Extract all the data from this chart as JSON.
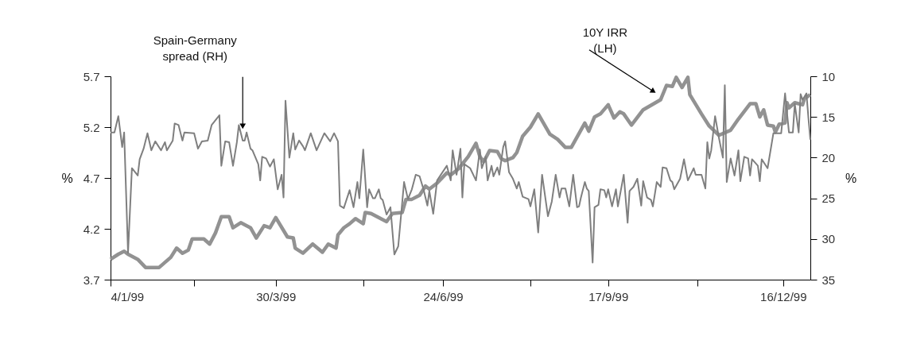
{
  "chart_data": {
    "type": "line",
    "ylabel": "%",
    "y2label": "%",
    "xlim": [
      "1999-01-04",
      "1999-12-30"
    ],
    "xticks": [
      {
        "value": "1999-01-04",
        "label": "4/1/99"
      },
      {
        "value": "1999-02-16",
        "label": null
      },
      {
        "value": "1999-03-30",
        "label": "30/3/99"
      },
      {
        "value": "1999-05-14",
        "label": null
      },
      {
        "value": "1999-06-24",
        "label": "24/6/99"
      },
      {
        "value": "1999-08-08",
        "label": null
      },
      {
        "value": "1999-09-17",
        "label": "17/9/99"
      },
      {
        "value": "1999-11-02",
        "label": null
      },
      {
        "value": "1999-12-16",
        "label": "16/12/99"
      }
    ],
    "ylim": [
      3.7,
      5.7
    ],
    "yticks": [
      3.7,
      4.2,
      4.7,
      5.2,
      5.7
    ],
    "y2lim": [
      35,
      10
    ],
    "y2ticks": [
      35,
      30,
      25,
      20,
      15,
      10
    ],
    "grid": false,
    "marker": "none",
    "line_style": "solid",
    "annotations": [
      {
        "text": "Spain-Germany\nspread (RH)",
        "x": "1999-03-13",
        "y": 5.17
      },
      {
        "text": "10Y IRR\n(LH)",
        "x": "1999-10-12",
        "y": 5.53
      }
    ],
    "series": [
      {
        "color": "#929292",
        "axis": "y",
        "x": [
          "1999-01-04",
          "1999-01-08",
          "1999-01-11",
          "1999-01-13",
          "1999-01-18",
          "1999-01-22",
          "1999-01-29",
          "1999-02-04",
          "1999-02-07",
          "1999-02-10",
          "1999-02-13",
          "1999-02-15",
          "1999-02-21",
          "1999-02-24",
          "1999-02-27",
          "1999-03-02",
          "1999-03-06",
          "1999-03-08",
          "1999-03-12",
          "1999-03-17",
          "1999-03-20",
          "1999-03-24",
          "1999-03-27",
          "1999-03-30",
          "1999-04-05",
          "1999-04-08",
          "1999-04-09",
          "1999-04-13",
          "1999-04-18",
          "1999-04-23",
          "1999-04-26",
          "1999-04-30",
          "1999-05-01",
          "1999-05-04",
          "1999-05-07",
          "1999-05-10",
          "1999-05-14",
          "1999-05-15",
          "1999-05-18",
          "1999-05-26",
          "1999-05-29",
          "1999-06-03",
          "1999-06-05",
          "1999-06-08",
          "1999-06-12",
          "1999-06-15",
          "1999-06-17",
          "1999-06-21",
          "1999-06-26",
          "1999-06-28",
          "1999-07-02",
          "1999-07-07",
          "1999-07-11",
          "1999-07-13",
          "1999-07-15",
          "1999-07-18",
          "1999-07-22",
          "1999-07-24",
          "1999-07-26",
          "1999-07-30",
          "1999-08-01",
          "1999-08-04",
          "1999-08-08",
          "1999-08-12",
          "1999-08-18",
          "1999-08-22",
          "1999-08-26",
          "1999-08-29",
          "1999-09-05",
          "1999-09-07",
          "1999-09-10",
          "1999-09-13",
          "1999-09-17",
          "1999-09-20",
          "1999-09-23",
          "1999-09-25",
          "1999-09-29",
          "1999-10-05",
          "1999-10-14",
          "1999-10-17",
          "1999-10-20",
          "1999-10-22",
          "1999-10-25",
          "1999-10-28",
          "1999-10-29",
          "1999-11-04",
          "1999-11-08",
          "1999-11-13",
          "1999-11-19",
          "1999-11-23",
          "1999-11-29",
          "1999-12-02",
          "1999-12-04",
          "1999-12-06",
          "1999-12-08",
          "1999-12-11",
          "1999-12-12",
          "1999-12-14",
          "1999-12-17",
          "1999-12-18",
          "1999-12-19",
          "1999-12-22",
          "1999-12-26",
          "1999-12-27",
          "1999-12-30"
        ],
        "values": [
          3.9,
          3.95,
          3.98,
          3.95,
          3.9,
          3.82,
          3.82,
          3.92,
          4.01,
          3.96,
          3.99,
          4.1,
          4.1,
          4.05,
          4.16,
          4.32,
          4.32,
          4.21,
          4.26,
          4.21,
          4.11,
          4.23,
          4.21,
          4.31,
          4.12,
          4.11,
          4.01,
          3.96,
          4.05,
          3.97,
          4.05,
          4.01,
          4.14,
          4.21,
          4.25,
          4.3,
          4.25,
          4.36,
          4.35,
          4.27,
          4.35,
          4.36,
          4.49,
          4.49,
          4.53,
          4.62,
          4.59,
          4.65,
          4.75,
          4.73,
          4.79,
          4.91,
          5.04,
          4.91,
          4.86,
          4.97,
          4.96,
          4.89,
          4.87,
          4.9,
          4.95,
          5.11,
          5.2,
          5.33,
          5.13,
          5.08,
          5.0,
          5.0,
          5.24,
          5.16,
          5.3,
          5.33,
          5.42,
          5.29,
          5.35,
          5.33,
          5.22,
          5.37,
          5.47,
          5.61,
          5.6,
          5.69,
          5.59,
          5.69,
          5.52,
          5.33,
          5.21,
          5.12,
          5.17,
          5.28,
          5.43,
          5.43,
          5.3,
          5.37,
          5.22,
          5.21,
          5.15,
          5.23,
          5.24,
          5.44,
          5.39,
          5.44,
          5.42,
          5.48,
          5.52
        ]
      },
      {
        "color": "#7f7f7f",
        "axis": "y2",
        "x": [
          "1999-01-04",
          "1999-01-06",
          "1999-01-08",
          "1999-01-10",
          "1999-01-11",
          "1999-01-13",
          "1999-01-15",
          "1999-01-18",
          "1999-01-19",
          "1999-01-21",
          "1999-01-23",
          "1999-01-25",
          "1999-01-27",
          "1999-01-30",
          "1999-02-01",
          "1999-02-02",
          "1999-02-05",
          "1999-02-06",
          "1999-02-08",
          "1999-02-10",
          "1999-02-11",
          "1999-02-16",
          "1999-02-18",
          "1999-02-20",
          "1999-02-23",
          "1999-02-25",
          "1999-03-01",
          "1999-03-02",
          "1999-03-04",
          "1999-03-06",
          "1999-03-08",
          "1999-03-10",
          "1999-03-11",
          "1999-03-13",
          "1999-03-14",
          "1999-03-15",
          "1999-03-17",
          "1999-03-18",
          "1999-03-21",
          "1999-03-22",
          "1999-03-23",
          "1999-03-25",
          "1999-03-27",
          "1999-03-29",
          "1999-03-31",
          "1999-04-02",
          "1999-04-03",
          "1999-04-04",
          "1999-04-06",
          "1999-04-08",
          "1999-04-09",
          "1999-04-11",
          "1999-04-13",
          "1999-04-14",
          "1999-04-17",
          "1999-04-20",
          "1999-04-24",
          "1999-04-27",
          "1999-04-29",
          "1999-05-01",
          "1999-05-02",
          "1999-05-04",
          "1999-05-07",
          "1999-05-09",
          "1999-05-11",
          "1999-05-12",
          "1999-05-14",
          "1999-05-16",
          "1999-05-17",
          "1999-05-19",
          "1999-05-20",
          "1999-05-22",
          "1999-05-23",
          "1999-05-24",
          "1999-05-26",
          "1999-05-28",
          "1999-05-30",
          "1999-06-01",
          "1999-06-04",
          "1999-06-06",
          "1999-06-08",
          "1999-06-10",
          "1999-06-12",
          "1999-06-14",
          "1999-06-16",
          "1999-06-17",
          "1999-06-19",
          "1999-06-21",
          "1999-06-26",
          "1999-06-28",
          "1999-06-29",
          "1999-07-01",
          "1999-07-03",
          "1999-07-04",
          "1999-07-05",
          "1999-07-08",
          "1999-07-11",
          "1999-07-13",
          "1999-07-14",
          "1999-07-16",
          "1999-07-17",
          "1999-07-19",
          "1999-07-20",
          "1999-07-22",
          "1999-07-23",
          "1999-07-25",
          "1999-07-26",
          "1999-07-28",
          "1999-07-30",
          "1999-08-01",
          "1999-08-02",
          "1999-08-04",
          "1999-08-07",
          "1999-08-08",
          "1999-08-10",
          "1999-08-12",
          "1999-08-14",
          "1999-08-17",
          "1999-08-19",
          "1999-08-21",
          "1999-08-23",
          "1999-08-24",
          "1999-08-26",
          "1999-08-28",
          "1999-08-30",
          "1999-09-01",
          "1999-09-02",
          "1999-09-03",
          "1999-09-05",
          "1999-09-06",
          "1999-09-07",
          "1999-09-09",
          "1999-09-10",
          "1999-09-12",
          "1999-09-13",
          "1999-09-15",
          "1999-09-16",
          "1999-09-17",
          "1999-09-19",
          "1999-09-21",
          "1999-09-22",
          "1999-09-25",
          "1999-09-27",
          "1999-09-28",
          "1999-09-30",
          "1999-10-02",
          "1999-10-04",
          "1999-10-05",
          "1999-10-07",
          "1999-10-09",
          "1999-10-10",
          "1999-10-12",
          "1999-10-14",
          "1999-10-15",
          "1999-10-17",
          "1999-10-19",
          "1999-10-20",
          "1999-10-21",
          "1999-10-24",
          "1999-10-26",
          "1999-10-28",
          "1999-10-31",
          "1999-11-01",
          "1999-11-04",
          "1999-11-06",
          "1999-11-07",
          "1999-11-08",
          "1999-11-09",
          "1999-11-11",
          "1999-11-13",
          "1999-11-15",
          "1999-11-16",
          "1999-11-17",
          "1999-11-19",
          "1999-11-21",
          "1999-11-23",
          "1999-11-24",
          "1999-11-26",
          "1999-11-28",
          "1999-11-29",
          "1999-11-30",
          "1999-12-03",
          "1999-12-04",
          "1999-12-05",
          "1999-12-08",
          "1999-12-11",
          "1999-12-15",
          "1999-12-17",
          "1999-12-19",
          "1999-12-21",
          "1999-12-22",
          "1999-12-24",
          "1999-12-25",
          "1999-12-26",
          "1999-12-28",
          "1999-12-29",
          "1999-12-30"
        ],
        "values": [
          16.9,
          16.9,
          14.9,
          18.7,
          16.9,
          31.7,
          21.3,
          22.2,
          20.2,
          18.9,
          17.0,
          19.1,
          18.0,
          19.1,
          18.1,
          19.1,
          17.9,
          15.8,
          16.0,
          17.9,
          16.9,
          17.0,
          18.9,
          18.0,
          17.9,
          16.0,
          14.8,
          21.0,
          18.0,
          18.1,
          21.0,
          18.1,
          16.0,
          17.9,
          17.9,
          16.9,
          18.9,
          19.1,
          20.8,
          22.8,
          19.9,
          20.1,
          21.1,
          20.2,
          23.9,
          22.1,
          24.9,
          13.0,
          20.0,
          17.0,
          19.0,
          17.9,
          18.6,
          19.1,
          17.0,
          19.1,
          17.0,
          18.0,
          17.0,
          18.0,
          25.9,
          26.2,
          24.0,
          26.1,
          23.0,
          25.0,
          19.0,
          26.1,
          23.9,
          25.0,
          25.0,
          23.9,
          25.0,
          25.2,
          27.0,
          26.1,
          31.9,
          30.9,
          23.0,
          25.1,
          23.9,
          22.1,
          22.3,
          23.9,
          25.9,
          24.1,
          26.9,
          22.8,
          21.0,
          22.8,
          19.1,
          22.1,
          18.9,
          24.9,
          20.8,
          21.3,
          22.8,
          19.0,
          21.3,
          19.9,
          22.8,
          21.0,
          22.3,
          21.2,
          22.1,
          18.7,
          18.0,
          21.8,
          22.6,
          23.8,
          23.0,
          24.8,
          25.1,
          26.0,
          23.9,
          29.2,
          22.1,
          27.2,
          25.4,
          22.1,
          24.9,
          23.8,
          23.8,
          26.0,
          22.1,
          26.1,
          26.0,
          24.9,
          23.0,
          23.8,
          24.1,
          32.9,
          26.1,
          25.8,
          23.9,
          24.0,
          24.9,
          23.9,
          26.0,
          23.9,
          26.0,
          22.1,
          28.0,
          24.1,
          23.6,
          22.6,
          25.9,
          22.9,
          24.9,
          25.2,
          26.0,
          23.0,
          23.6,
          21.2,
          21.3,
          22.8,
          23.0,
          23.9,
          22.6,
          20.2,
          22.8,
          21.3,
          22.1,
          22.1,
          23.8,
          18.1,
          20.1,
          19.1,
          14.9,
          17.6,
          20.0,
          11.1,
          23.0,
          20.1,
          22.2,
          19.1,
          22.9,
          19.9,
          20.1,
          22.2,
          20.2,
          21.0,
          22.9,
          20.2,
          21.3,
          17.0,
          17.0,
          12.1,
          16.9,
          16.9,
          13.4,
          16.9,
          12.2,
          12.9,
          12.1,
          15.1,
          17.8
        ]
      }
    ]
  }
}
